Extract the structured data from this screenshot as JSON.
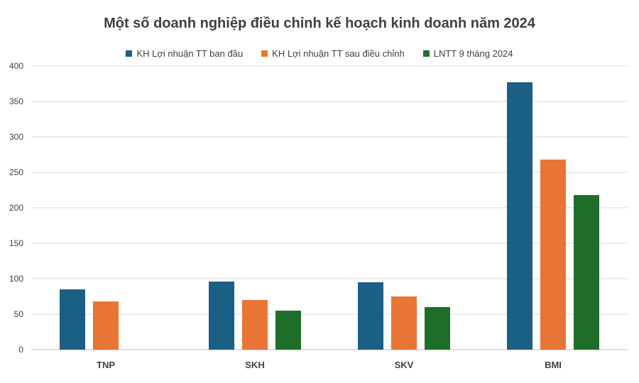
{
  "chart_data": {
    "type": "bar",
    "title": "Một số doanh nghiệp điều chỉnh kế hoạch kinh doanh năm 2024",
    "categories": [
      "TNP",
      "SKH",
      "SKV",
      "BMI"
    ],
    "series": [
      {
        "name": "KH Lợi nhuận TT ban đầu",
        "color": "#1b5f85",
        "values": [
          85,
          96,
          95,
          377
        ]
      },
      {
        "name": "KH Lợi nhuận TT sau điều chỉnh",
        "color": "#e87435",
        "values": [
          68,
          70,
          75,
          268
        ]
      },
      {
        "name": "LNTT 9 tháng 2024",
        "color": "#1e6e2a",
        "values": [
          null,
          55,
          60,
          218
        ]
      }
    ],
    "ylim": [
      0,
      400
    ],
    "yticks": [
      0,
      50,
      100,
      150,
      200,
      250,
      300,
      350,
      400
    ],
    "grid": true,
    "legend_position": "top"
  }
}
